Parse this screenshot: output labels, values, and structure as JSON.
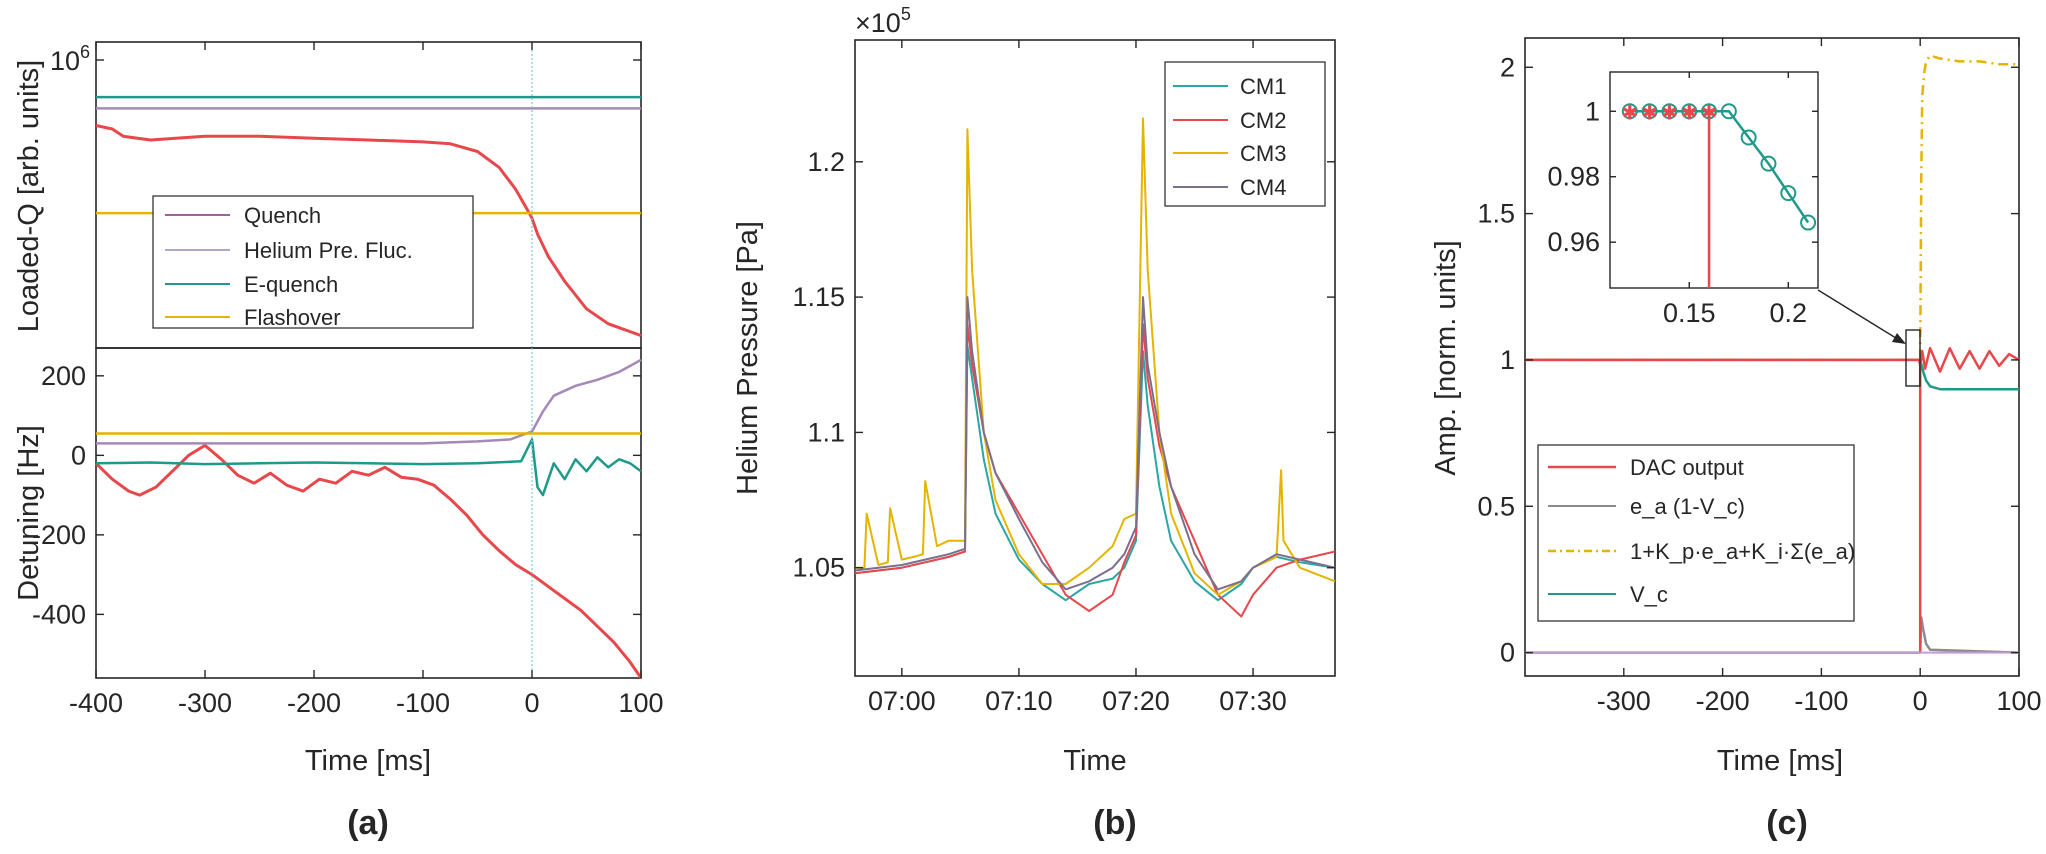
{
  "figure": {
    "panel_labels": [
      "(a)",
      "(b)",
      "(c)"
    ]
  },
  "chart_data": [
    {
      "id": "a_top",
      "type": "line",
      "panel": "(a)",
      "title": "",
      "xlabel": "",
      "ylabel": "Loaded-Q [arb. units]",
      "yscale": "log",
      "xlim": [
        -400,
        100
      ],
      "ylim": [
        300000,
        1000000
      ],
      "y_ticks": [
        {
          "value": 1000000,
          "base": "10",
          "exp": "6"
        }
      ],
      "legend_position": "lower-left",
      "series": [
        {
          "name": "Quench",
          "color": "#e8474b",
          "x": [
            -400,
            -385,
            -375,
            -350,
            -300,
            -250,
            -200,
            -150,
            -100,
            -75,
            -50,
            -30,
            -15,
            -5,
            0,
            5,
            15,
            30,
            50,
            70,
            90,
            100
          ],
          "y": [
            720000,
            710000,
            690000,
            680000,
            690000,
            690000,
            685000,
            680000,
            675000,
            670000,
            650000,
            610000,
            560000,
            520000,
            500000,
            470000,
            430000,
            390000,
            350000,
            330000,
            320000,
            315000
          ]
        },
        {
          "name": "Helium Pre. Fluc.",
          "color": "#a689b8",
          "x": [
            -400,
            100
          ],
          "y": [
            770000,
            770000
          ]
        },
        {
          "name": "E-quench",
          "color": "#1f9a8a",
          "x": [
            -400,
            100
          ],
          "y": [
            805000,
            805000
          ]
        },
        {
          "name": "Flashover",
          "color": "#e4b400",
          "x": [
            -400,
            100
          ],
          "y": [
            510000,
            510000
          ]
        }
      ]
    },
    {
      "id": "a_bottom",
      "type": "line",
      "panel": "(a)",
      "title": "",
      "xlabel": "Time [ms]",
      "ylabel": "Detuning [Hz]",
      "xlim": [
        -400,
        100
      ],
      "ylim": [
        -560,
        270
      ],
      "x_ticks": [
        -400,
        -300,
        -200,
        -100,
        0,
        100
      ],
      "y_ticks": [
        200,
        0,
        -200,
        -400
      ],
      "series": [
        {
          "name": "Quench",
          "color": "#e8474b",
          "x": [
            -400,
            -385,
            -370,
            -360,
            -345,
            -330,
            -315,
            -300,
            -285,
            -270,
            -255,
            -240,
            -225,
            -210,
            -195,
            -180,
            -165,
            -150,
            -135,
            -120,
            -105,
            -90,
            -75,
            -60,
            -45,
            -30,
            -15,
            0,
            15,
            30,
            45,
            60,
            75,
            90,
            100
          ],
          "y": [
            -20,
            -60,
            -90,
            -100,
            -80,
            -40,
            0,
            25,
            -10,
            -50,
            -70,
            -45,
            -75,
            -90,
            -60,
            -70,
            -40,
            -50,
            -30,
            -55,
            -60,
            -75,
            -110,
            -150,
            -200,
            -240,
            -275,
            -300,
            -330,
            -360,
            -390,
            -430,
            -470,
            -520,
            -560
          ]
        },
        {
          "name": "Helium Pre. Fluc.",
          "color": "#a689b8",
          "x": [
            -400,
            -300,
            -200,
            -100,
            -50,
            -20,
            0,
            10,
            20,
            40,
            60,
            80,
            100
          ],
          "y": [
            30,
            30,
            30,
            30,
            35,
            40,
            60,
            110,
            150,
            175,
            190,
            210,
            240
          ]
        },
        {
          "name": "E-quench",
          "color": "#1f9a8a",
          "x": [
            -400,
            -350,
            -300,
            -250,
            -200,
            -150,
            -100,
            -50,
            -10,
            0,
            5,
            10,
            15,
            20,
            30,
            40,
            50,
            60,
            70,
            80,
            90,
            100
          ],
          "y": [
            -20,
            -18,
            -22,
            -20,
            -18,
            -20,
            -22,
            -20,
            -15,
            40,
            -80,
            -100,
            -60,
            -20,
            -60,
            -10,
            -40,
            -5,
            -30,
            -10,
            -20,
            -40
          ]
        },
        {
          "name": "Flashover",
          "color": "#e4b400",
          "x": [
            -400,
            100
          ],
          "y": [
            55,
            55
          ]
        }
      ]
    },
    {
      "id": "b",
      "type": "line",
      "panel": "(b)",
      "title": "",
      "xlabel": "Time",
      "ylabel": "Helium Pressure [Pa]",
      "multiplier_base": "×10",
      "multiplier_exp": "5",
      "x_unit": "minutes of day",
      "xlim": [
        416,
        457
      ],
      "ylim": [
        1.01,
        1.245
      ],
      "x_ticks": [
        {
          "value": 420,
          "label": "07:00"
        },
        {
          "value": 430,
          "label": "07:10"
        },
        {
          "value": 440,
          "label": "07:20"
        },
        {
          "value": 450,
          "label": "07:30"
        }
      ],
      "y_ticks": [
        1.05,
        1.1,
        1.15,
        1.2
      ],
      "legend_position": "top-right",
      "series": [
        {
          "name": "CM1",
          "color": "#2aa6a6",
          "x": [
            416,
            418,
            420,
            422,
            424,
            425.4,
            425.6,
            426,
            427,
            428,
            430,
            432,
            434,
            436,
            438,
            439,
            440,
            440.6,
            441,
            442,
            443,
            445,
            447,
            449,
            450,
            452,
            454,
            457
          ],
          "y": [
            1.048,
            1.049,
            1.05,
            1.052,
            1.054,
            1.056,
            1.132,
            1.12,
            1.09,
            1.07,
            1.053,
            1.044,
            1.038,
            1.044,
            1.046,
            1.05,
            1.06,
            1.13,
            1.11,
            1.08,
            1.06,
            1.045,
            1.038,
            1.044,
            1.05,
            1.054,
            1.052,
            1.05
          ]
        },
        {
          "name": "CM2",
          "color": "#e8474b",
          "x": [
            416,
            418,
            420,
            422,
            424,
            425.4,
            425.6,
            426,
            427,
            428,
            430,
            432,
            434,
            436,
            438,
            439,
            440,
            440.6,
            441,
            442,
            443,
            445,
            447,
            449,
            450,
            452,
            454,
            457
          ],
          "y": [
            1.048,
            1.049,
            1.05,
            1.052,
            1.054,
            1.056,
            1.14,
            1.125,
            1.1,
            1.085,
            1.07,
            1.055,
            1.04,
            1.034,
            1.04,
            1.052,
            1.062,
            1.14,
            1.12,
            1.095,
            1.08,
            1.06,
            1.04,
            1.032,
            1.04,
            1.05,
            1.053,
            1.056
          ]
        },
        {
          "name": "CM3",
          "color": "#e4b400",
          "x": [
            416,
            416.8,
            417,
            418,
            418.8,
            419,
            420,
            421,
            421.8,
            422,
            423,
            424,
            425.4,
            425.6,
            426,
            427,
            428,
            430,
            432,
            434,
            436,
            438,
            439,
            440,
            440.6,
            441,
            442,
            443,
            445,
            447,
            449,
            450,
            451,
            452,
            452.4,
            452.6,
            454,
            457
          ],
          "y": [
            1.05,
            1.05,
            1.07,
            1.051,
            1.052,
            1.072,
            1.053,
            1.054,
            1.055,
            1.082,
            1.058,
            1.06,
            1.06,
            1.212,
            1.16,
            1.1,
            1.075,
            1.055,
            1.044,
            1.044,
            1.05,
            1.058,
            1.068,
            1.07,
            1.216,
            1.16,
            1.1,
            1.07,
            1.048,
            1.04,
            1.045,
            1.05,
            1.052,
            1.054,
            1.086,
            1.06,
            1.05,
            1.045
          ]
        },
        {
          "name": "CM4",
          "color": "#7a6f8f",
          "x": [
            416,
            418,
            420,
            422,
            424,
            425.4,
            425.6,
            426,
            427,
            428,
            430,
            432,
            434,
            436,
            438,
            439,
            440,
            440.6,
            441,
            442,
            443,
            445,
            447,
            449,
            450,
            452,
            454,
            457
          ],
          "y": [
            1.049,
            1.05,
            1.051,
            1.053,
            1.055,
            1.057,
            1.15,
            1.13,
            1.1,
            1.085,
            1.068,
            1.052,
            1.042,
            1.045,
            1.05,
            1.055,
            1.065,
            1.15,
            1.125,
            1.1,
            1.08,
            1.055,
            1.042,
            1.045,
            1.05,
            1.055,
            1.053,
            1.05
          ]
        }
      ]
    },
    {
      "id": "c",
      "type": "line",
      "panel": "(c)",
      "title": "",
      "xlabel": "Time [ms]",
      "ylabel": "Amp. [norm. units]",
      "xlim": [
        -400,
        100
      ],
      "ylim": [
        -0.08,
        2.1
      ],
      "x_ticks": [
        -300,
        -200,
        -100,
        0,
        100
      ],
      "y_ticks": [
        0,
        0.5,
        1,
        1.5,
        2
      ],
      "legend_position": "lower-left",
      "series": [
        {
          "name": "DAC output",
          "color": "#e8474b",
          "x": [
            -400,
            -2,
            -1,
            0,
            2,
            5,
            10,
            20,
            30,
            40,
            50,
            60,
            70,
            80,
            90,
            100
          ],
          "y": [
            1,
            1,
            1,
            0.98,
            1.03,
            0.97,
            1.04,
            0.96,
            1.04,
            0.97,
            1.03,
            0.97,
            1.03,
            0.98,
            1.02,
            1
          ]
        },
        {
          "name": "e_a (1-V_c)",
          "color": "#8c8c8c",
          "x": [
            -400,
            -1,
            0,
            1,
            3,
            6,
            10,
            100
          ],
          "y": [
            0,
            0,
            0.0,
            0.12,
            0.08,
            0.03,
            0.01,
            0
          ]
        },
        {
          "name": "1+K_p·e_a+K_i·Σ(e_a)",
          "color": "#e4b400",
          "dash": true,
          "x": [
            -400,
            -1,
            0,
            1,
            2,
            4,
            6,
            10,
            20,
            40,
            60,
            80,
            100
          ],
          "y": [
            1,
            1,
            1,
            1.6,
            1.9,
            1.98,
            2.02,
            2.04,
            2.03,
            2.02,
            2.02,
            2.01,
            2.01
          ]
        },
        {
          "name": "V_c",
          "color": "#1f9a8a",
          "x": [
            -400,
            -2,
            0,
            3,
            6,
            10,
            20,
            40,
            100
          ],
          "y": [
            1,
            1,
            1,
            0.96,
            0.93,
            0.91,
            0.9,
            0.9,
            0.9
          ]
        }
      ],
      "inset": {
        "xlim": [
          0.11,
          0.215
        ],
        "ylim": [
          0.946,
          1.012
        ],
        "x_ticks": [
          0.15,
          0.2
        ],
        "y_ticks": [
          0.96,
          0.98,
          1
        ],
        "series": [
          {
            "name": "V_c",
            "color": "#1f9a8a",
            "marker": "circle",
            "x": [
              0.12,
              0.13,
              0.14,
              0.15,
              0.16,
              0.17,
              0.18,
              0.19,
              0.2,
              0.21
            ],
            "y": [
              1,
              1,
              1,
              1,
              1,
              1,
              0.992,
              0.984,
              0.975,
              0.966
            ]
          },
          {
            "name": "DAC output",
            "color": "#e8474b",
            "marker": "star",
            "x": [
              0.12,
              0.13,
              0.14,
              0.15,
              0.16,
              0.16,
              0.161
            ],
            "y": [
              1,
              1,
              1,
              1,
              1,
              0.946,
              0.946
            ]
          }
        ]
      }
    }
  ],
  "legends": {
    "a": [
      "Quench",
      "Helium Pre. Fluc.",
      "E-quench",
      "Flashover"
    ],
    "b": [
      "CM1",
      "CM2",
      "CM3",
      "CM4"
    ]
  }
}
